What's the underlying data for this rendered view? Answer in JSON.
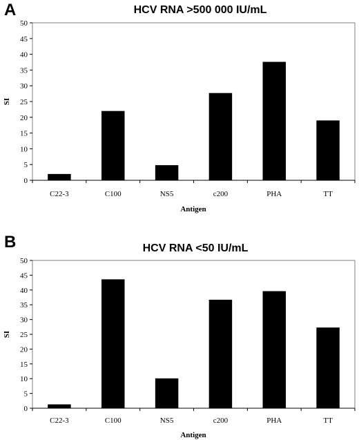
{
  "chart_data": [
    {
      "panel": "A",
      "type": "bar",
      "title": "HCV RNA >500 000 IU/mL",
      "xlabel": "Antigen",
      "ylabel": "SI",
      "categories": [
        "C22-3",
        "C100",
        "NS5",
        "c200",
        "PHA",
        "TT"
      ],
      "values": [
        2,
        22,
        4.8,
        27.7,
        37.6,
        19
      ],
      "ylim": [
        0,
        50
      ],
      "yticks": [
        "0",
        "5",
        "10",
        "15",
        "20",
        "25",
        "30",
        "35",
        "40",
        "45",
        "50"
      ],
      "grid": false,
      "legend": "none",
      "bar_color": "#000000"
    },
    {
      "panel": "B",
      "type": "bar",
      "title": "HCV RNA <50 IU/mL",
      "xlabel": "Antigen",
      "ylabel": "SI",
      "categories": [
        "C22-3",
        "C100",
        "NS5",
        "c200",
        "PHA",
        "TT"
      ],
      "values": [
        1.3,
        43.6,
        10.1,
        36.7,
        39.6,
        27.3
      ],
      "ylim": [
        0,
        50
      ],
      "yticks": [
        "0",
        "5",
        "10",
        "15",
        "20",
        "25",
        "30",
        "35",
        "40",
        "45",
        "50"
      ],
      "grid": false,
      "legend": "none",
      "bar_color": "#000000"
    }
  ]
}
